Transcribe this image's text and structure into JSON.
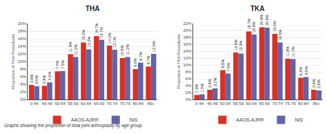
{
  "chart_data": [
    {
      "type": "bar",
      "title": "THA",
      "ylabel": "Proportion of THA Procedures",
      "categories": [
        "0-44",
        "45-49",
        "50-54",
        "55-59",
        "60-64",
        "65-69",
        "70-74",
        "75-79",
        "80-84",
        "85+"
      ],
      "series": [
        {
          "name": "AAOS-AJRR",
          "color": "#d93025",
          "values": [
            3.8,
            3.6,
            7.4,
            11.9,
            15.0,
            16.7,
            14.2,
            10.9,
            8.0,
            8.7
          ],
          "value_labels": [
            "3.8%",
            "3.6%",
            "7.4%",
            "11.9%",
            "15.0%",
            "16.7%",
            "14.2%",
            "10.9%",
            "8.0%",
            "8.7%"
          ]
        },
        {
          "name": "NIS",
          "color": "#6264a7",
          "values": [
            3.5,
            4.5,
            7.5,
            11.2,
            13.2,
            15.7,
            13.1,
            11.2,
            9.7,
            12.0
          ],
          "value_labels": [
            "3.5%",
            "4.5%",
            "7.5%",
            "11.2%",
            "13.2%",
            "15.7%",
            "13.1%",
            "11.2%",
            "9.7%",
            "12.0%"
          ]
        }
      ],
      "ylim": [
        0,
        20
      ],
      "yticks": [
        {
          "value": 0,
          "label": "0%"
        },
        {
          "value": 2,
          "label": "2%"
        },
        {
          "value": 4,
          "label": "4%"
        },
        {
          "value": 6,
          "label": "6%"
        },
        {
          "value": 8,
          "label": "8%"
        },
        {
          "value": 10,
          "label": "10%"
        },
        {
          "value": 12,
          "label": "12%"
        },
        {
          "value": 14,
          "label": "14%"
        },
        {
          "value": 16,
          "label": "16%"
        },
        {
          "value": 18,
          "label": "18%"
        },
        {
          "value": 20,
          "label": "20%"
        }
      ],
      "grid": true,
      "data_labels": true,
      "legend": "bottom",
      "annotations": [
        "Graphs showing the proportion of total joint arthroplasty by age group."
      ]
    },
    {
      "type": "bar",
      "title": "TKA",
      "ylabel": "Proportion of TKA Procedures",
      "categories": [
        "0-44",
        "45-49",
        "50-54",
        "55-59",
        "60-64",
        "65-69",
        "70-74",
        "75-79",
        "80-84",
        "85+"
      ],
      "series": [
        {
          "name": "AAOS-AJRR",
          "color": "#d93025",
          "values": [
            1.3,
            2.8,
            8.5,
            13.6,
            19.7,
            20.9,
            19.0,
            11.8,
            6.3,
            2.8
          ],
          "value_labels": [
            "1.3%",
            "2.8%",
            "8.5%",
            "13.6%",
            "19.7%",
            "20.9%",
            "19.0%",
            "11.8%",
            "6.3%",
            "2.8%"
          ]
        },
        {
          "name": "NIS",
          "color": "#6264a7",
          "values": [
            1.5,
            3.2,
            7.5,
            13.3,
            18.8,
            20.8,
            16.5,
            11.7,
            6.5,
            2.6
          ],
          "value_labels": [
            "1.5%",
            "3.2%",
            "7.5%",
            "13.3%",
            "18.8%",
            "20.8%",
            "16.5%",
            "11.7%",
            "6.5%",
            "2.6%"
          ]
        }
      ],
      "ylim": [
        0,
        22
      ],
      "yticks": [
        {
          "value": 0,
          "label": "0%"
        },
        {
          "value": 2,
          "label": "2%"
        },
        {
          "value": 4,
          "label": "4%"
        },
        {
          "value": 6,
          "label": "6%"
        },
        {
          "value": 8,
          "label": "8%"
        },
        {
          "value": 10,
          "label": "10%"
        },
        {
          "value": 12,
          "label": "12%"
        },
        {
          "value": 14,
          "label": "14%"
        },
        {
          "value": 16,
          "label": "16%"
        },
        {
          "value": 18,
          "label": "18%"
        },
        {
          "value": 20,
          "label": "20%"
        },
        {
          "value": 22,
          "label": "22%"
        }
      ],
      "grid": true,
      "data_labels": true,
      "legend": "bottom"
    }
  ]
}
